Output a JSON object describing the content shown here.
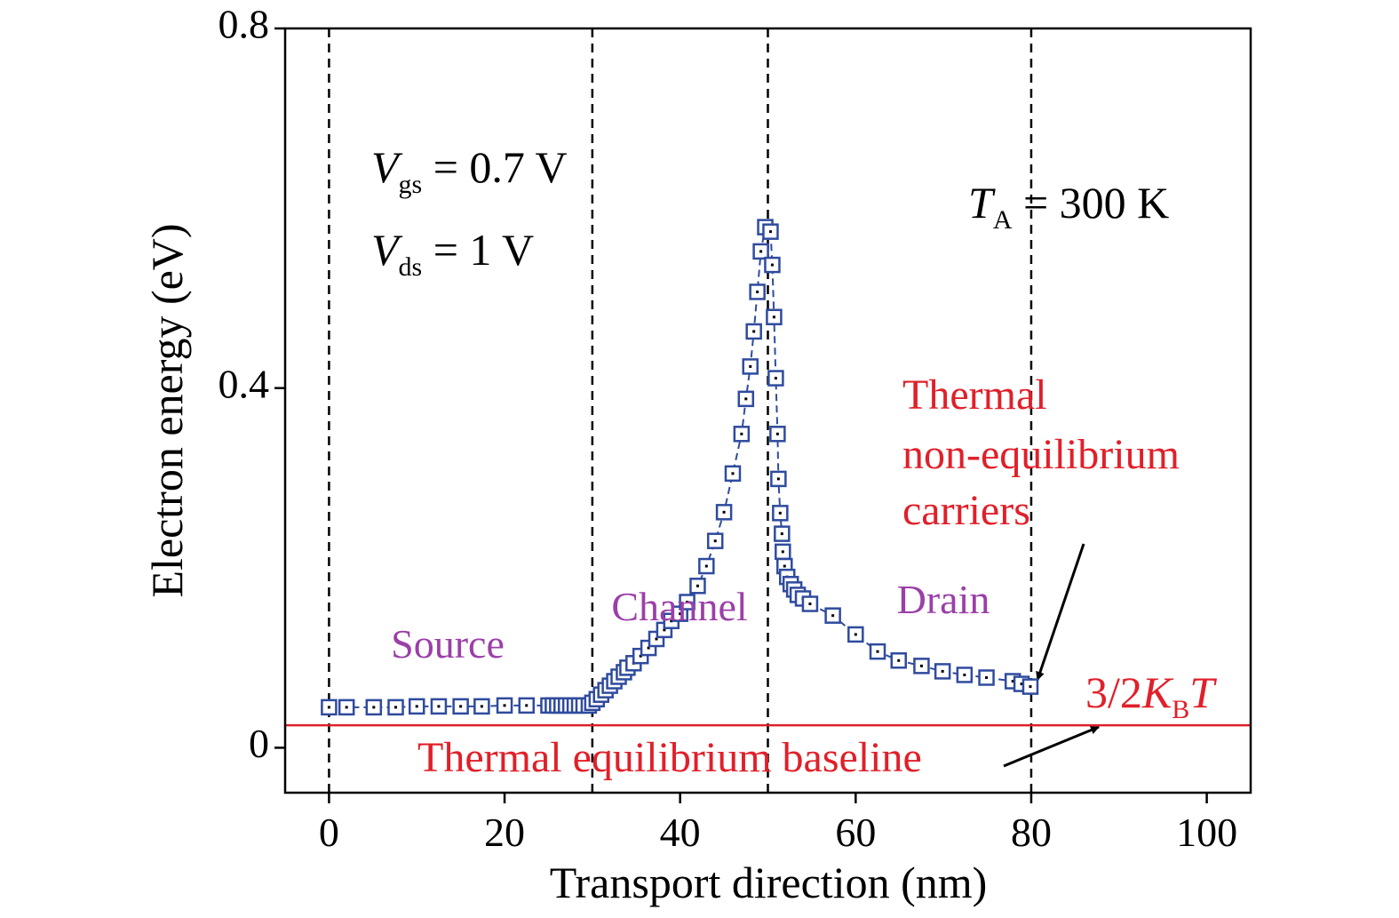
{
  "chart_data": {
    "type": "scatter",
    "xlabel": "Transport direction (nm)",
    "ylabel": "Electron energy (eV)",
    "xlim": [
      -5,
      105
    ],
    "ylim": [
      -0.05,
      0.8
    ],
    "xticks": [
      0,
      20,
      40,
      60,
      80,
      100
    ],
    "yticks": [
      0,
      0.4,
      0.8
    ],
    "vlines": [
      0,
      30,
      50,
      80
    ],
    "x": [
      0,
      2,
      5.1,
      7.6,
      10,
      12.5,
      15,
      17.4,
      20,
      22.5,
      25,
      25.5,
      26,
      26.5,
      27,
      27.5,
      28,
      28.5,
      29,
      29.6,
      30,
      30.5,
      31,
      31.5,
      32,
      32.5,
      33,
      33.6,
      34,
      34.7,
      35.5,
      36.4,
      37.3,
      38.2,
      39,
      40,
      40.8,
      42,
      43,
      44,
      45,
      46,
      47,
      47.5,
      48,
      48.4,
      48.8,
      49.2,
      49.7,
      50.3,
      50.5,
      50.7,
      50.9,
      51.1,
      51.2,
      51.4,
      51.6,
      51.7,
      51.9,
      52.2,
      52.6,
      53,
      53.4,
      54,
      54.8,
      57.4,
      60,
      62.5,
      64.9,
      67.5,
      69.9,
      72.4,
      74.9,
      77.9,
      78.9,
      79.9
    ],
    "series": [
      {
        "color": "#2f4b9e",
        "values": [
          0.045,
          0.045,
          0.045,
          0.045,
          0.046,
          0.046,
          0.046,
          0.046,
          0.047,
          0.047,
          0.047,
          0.047,
          0.047,
          0.047,
          0.047,
          0.047,
          0.047,
          0.047,
          0.047,
          0.047,
          0.05,
          0.054,
          0.059,
          0.064,
          0.069,
          0.074,
          0.079,
          0.084,
          0.089,
          0.094,
          0.102,
          0.111,
          0.121,
          0.131,
          0.141,
          0.149,
          0.162,
          0.18,
          0.202,
          0.23,
          0.262,
          0.305,
          0.349,
          0.388,
          0.424,
          0.463,
          0.507,
          0.552,
          0.579,
          0.574,
          0.537,
          0.479,
          0.411,
          0.349,
          0.299,
          0.261,
          0.238,
          0.218,
          0.202,
          0.19,
          0.182,
          0.176,
          0.17,
          0.166,
          0.16,
          0.147,
          0.126,
          0.107,
          0.097,
          0.091,
          0.085,
          0.081,
          0.078,
          0.074,
          0.071,
          0.068
        ]
      }
    ],
    "reference_line": {
      "value": 0.025,
      "color": "#e0202a",
      "label": {
        "prefix": "3/2",
        "italic": "K",
        "sub": "B",
        "suffix": "T"
      }
    },
    "annotations": [
      {
        "italic": "V",
        "sub": "gs",
        "text": " = 0.7 V"
      },
      {
        "italic": "V",
        "sub": "ds",
        "text": " = 1 V"
      },
      {
        "italic": "T",
        "sub": "A",
        "text": " = 300 K"
      }
    ],
    "regions": [
      "Source",
      "Channel",
      "Drain"
    ],
    "note_lines": [
      "Thermal",
      "non-equilibrium",
      "carriers"
    ],
    "baseline_label": "Thermal equilibrium baseline"
  }
}
